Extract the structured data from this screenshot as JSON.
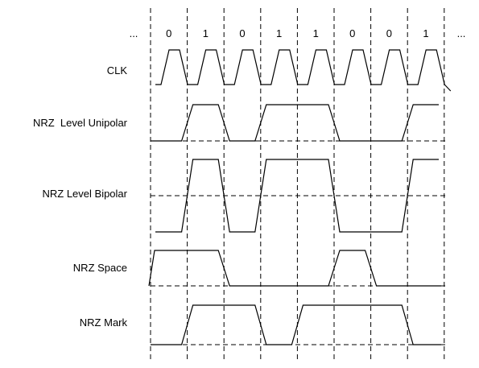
{
  "bits": [
    "0",
    "1",
    "0",
    "1",
    "1",
    "0",
    "0",
    "1"
  ],
  "ellipsis_left": "...",
  "ellipsis_right": "...",
  "rows": [
    {
      "id": "clk",
      "label": "CLK",
      "type": "clock",
      "start_level": 0
    },
    {
      "id": "nrz-level-unipolar",
      "label": "NRZ  Level Unipolar",
      "type": "levels",
      "levels": [
        0,
        1,
        0,
        1,
        1,
        0,
        0,
        1
      ]
    },
    {
      "id": "nrz-level-bipolar",
      "label": "NRZ Level Bipolar",
      "type": "levels",
      "levels": [
        0,
        1,
        0,
        1,
        1,
        0,
        0,
        1
      ]
    },
    {
      "id": "nrz-space",
      "label": "NRZ Space",
      "type": "levels",
      "levels": [
        1,
        1,
        0,
        0,
        0,
        1,
        0,
        0
      ],
      "start_level": 0
    },
    {
      "id": "nrz-mark",
      "label": "NRZ Mark",
      "type": "levels",
      "levels": [
        0,
        1,
        1,
        0,
        1,
        1,
        1,
        0
      ]
    }
  ]
}
